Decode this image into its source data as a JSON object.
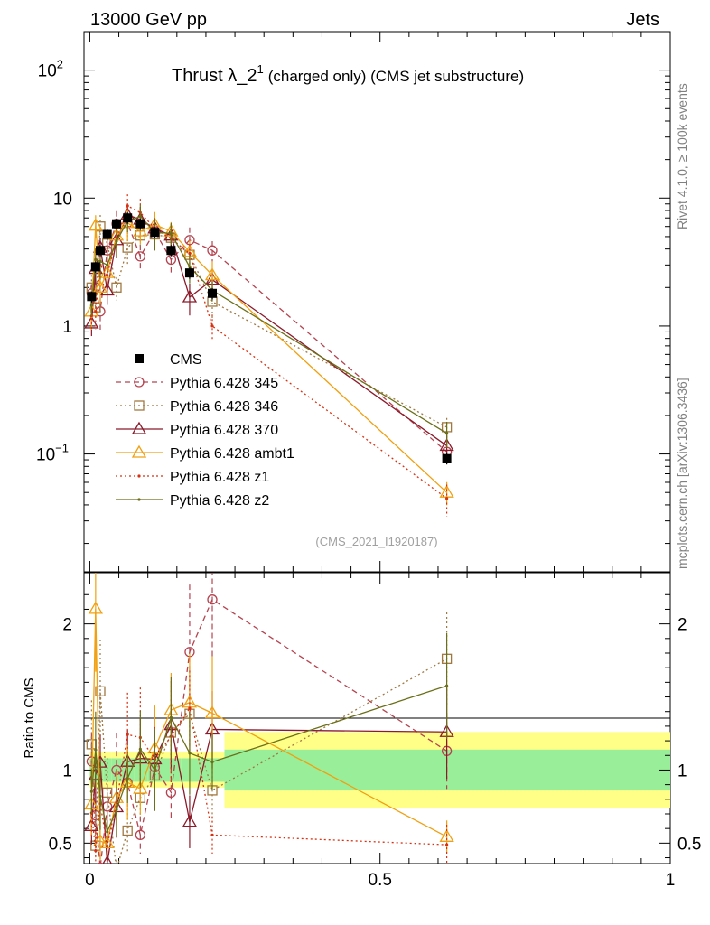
{
  "header": {
    "left": "13000 GeV pp",
    "right": "Jets"
  },
  "side_text": {
    "rivet": "Rivet 4.1.0, ≥ 100k events",
    "site": "mcplots.cern.ch [arXiv:1306.3436]"
  },
  "watermark": "(CMS_2021_I1920187)",
  "chart_data": {
    "type": "line",
    "title": "Thrust λ_2¹ (charged only) (CMS jet substructure)",
    "title_main": "Thrust λ_2",
    "title_sup": "1",
    "title_rest": "(charged only) (CMS jet substructure)",
    "xlabel": "",
    "ylabel": "",
    "ratio_ylabel": "Ratio to CMS",
    "xlim": [
      -0.01,
      1.0
    ],
    "ylim": [
      0.012,
      200
    ],
    "yscale": "log",
    "ratio_ylim": [
      0.36,
      2.35
    ],
    "x_ticks": [
      "0",
      "0.5",
      "1"
    ],
    "x_tick_values": [
      0,
      0.5,
      1
    ],
    "y_ticks": [
      "10^2",
      "10",
      "1",
      "10^-1"
    ],
    "ratio_ticks": [
      "2",
      "1",
      "0.5"
    ],
    "ratio_tick_values": [
      2,
      1,
      0.5
    ],
    "data": {
      "name": "CMS",
      "color": "#000000",
      "x": [
        0.003,
        0.01,
        0.018,
        0.03,
        0.046,
        0.065,
        0.087,
        0.112,
        0.14,
        0.172,
        0.211,
        0.615
      ],
      "y": [
        1.7,
        2.9,
        3.9,
        5.2,
        6.3,
        7.0,
        6.3,
        5.4,
        3.9,
        2.6,
        1.8,
        0.092
      ],
      "band_edges": [
        0.0,
        0.008,
        0.014,
        0.024,
        0.038,
        0.055,
        0.077,
        0.1,
        0.126,
        0.157,
        0.19,
        0.232,
        1.0
      ],
      "band_stat": [
        0.08,
        0.08,
        0.08,
        0.08,
        0.08,
        0.08,
        0.08,
        0.08,
        0.08,
        0.08,
        0.08,
        0.14
      ],
      "band_total": [
        0.12,
        0.12,
        0.12,
        0.12,
        0.12,
        0.12,
        0.12,
        0.12,
        0.12,
        0.12,
        0.12,
        0.26
      ]
    },
    "series": [
      {
        "name": "Pythia 6.428 345",
        "color": "#b5434f",
        "dash": "6,4",
        "marker": "circle",
        "x": [
          0.003,
          0.01,
          0.018,
          0.03,
          0.046,
          0.065,
          0.087,
          0.112,
          0.14,
          0.172,
          0.211,
          0.615
        ],
        "y": [
          1.8,
          2.0,
          1.3,
          3.9,
          6.3,
          6.4,
          3.5,
          5.5,
          3.3,
          4.7,
          3.9,
          0.104
        ]
      },
      {
        "name": "Pythia 6.428 346",
        "color": "#a07840",
        "dash": "2,3",
        "marker": "square",
        "x": [
          0.003,
          0.01,
          0.018,
          0.03,
          0.046,
          0.065,
          0.087,
          0.112,
          0.14,
          0.172,
          0.211,
          0.615
        ],
        "y": [
          2.0,
          1.4,
          6.0,
          4.4,
          2.0,
          4.1,
          5.1,
          5.2,
          4.9,
          3.6,
          1.55,
          0.162
        ]
      },
      {
        "name": "Pythia 6.428 370",
        "color": "#8b1a2a",
        "dash": "",
        "marker": "triangle",
        "x": [
          0.003,
          0.01,
          0.018,
          0.03,
          0.046,
          0.065,
          0.087,
          0.112,
          0.14,
          0.172,
          0.211,
          0.615
        ],
        "y": [
          1.05,
          2.8,
          4.1,
          1.9,
          4.7,
          7.4,
          6.8,
          5.8,
          5.1,
          1.68,
          2.3,
          0.116
        ]
      },
      {
        "name": "Pythia 6.428 ambt1",
        "color": "#f0a010",
        "dash": "",
        "marker": "triangle",
        "x": [
          0.003,
          0.01,
          0.018,
          0.03,
          0.046,
          0.065,
          0.087,
          0.112,
          0.14,
          0.172,
          0.211,
          0.615
        ],
        "y": [
          1.3,
          6.1,
          2.0,
          2.6,
          5.1,
          6.4,
          5.5,
          6.2,
          5.5,
          3.8,
          2.5,
          0.05
        ]
      },
      {
        "name": "Pythia 6.428 z1",
        "color": "#d83010",
        "dash": "2,3",
        "marker": "dot",
        "x": [
          0.003,
          0.01,
          0.018,
          0.03,
          0.046,
          0.065,
          0.087,
          0.112,
          0.14,
          0.172,
          0.211,
          0.615
        ],
        "y": [
          1.2,
          1.3,
          3.0,
          2.5,
          4.9,
          8.7,
          7.7,
          5.8,
          4.8,
          3.7,
          1.0,
          0.045
        ]
      },
      {
        "name": "Pythia 6.428 z2",
        "color": "#6b7018",
        "dash": "",
        "marker": "dot",
        "x": [
          0.003,
          0.01,
          0.018,
          0.03,
          0.046,
          0.065,
          0.087,
          0.112,
          0.14,
          0.172,
          0.211,
          0.615
        ],
        "y": [
          1.45,
          3.3,
          3.2,
          3.0,
          4.6,
          6.6,
          7.2,
          5.4,
          5.3,
          2.9,
          1.9,
          0.145
        ]
      }
    ]
  }
}
